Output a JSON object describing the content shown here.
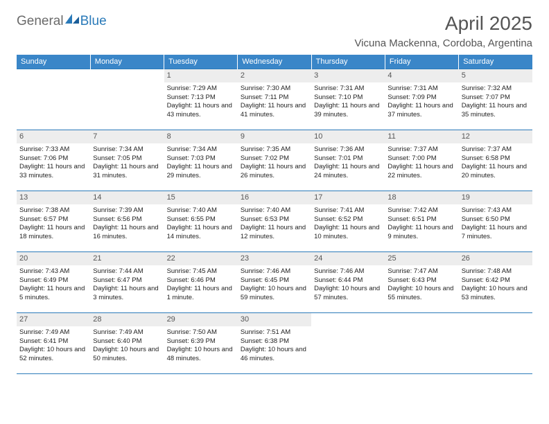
{
  "logo": {
    "textGeneral": "General",
    "textBlue": "Blue"
  },
  "header": {
    "monthTitle": "April 2025",
    "location": "Vicuna Mackenna, Cordoba, Argentina"
  },
  "colors": {
    "headerBg": "#3a86c8",
    "headerRule": "#2a7ab9",
    "dayBg": "#ededed",
    "text": "#222222",
    "titleText": "#555555"
  },
  "dayHeaders": [
    "Sunday",
    "Monday",
    "Tuesday",
    "Wednesday",
    "Thursday",
    "Friday",
    "Saturday"
  ],
  "weeks": [
    [
      {
        "blank": true
      },
      {
        "blank": true
      },
      {
        "n": "1",
        "sr": "7:29 AM",
        "ss": "7:13 PM",
        "dl": "11 hours and 43 minutes."
      },
      {
        "n": "2",
        "sr": "7:30 AM",
        "ss": "7:11 PM",
        "dl": "11 hours and 41 minutes."
      },
      {
        "n": "3",
        "sr": "7:31 AM",
        "ss": "7:10 PM",
        "dl": "11 hours and 39 minutes."
      },
      {
        "n": "4",
        "sr": "7:31 AM",
        "ss": "7:09 PM",
        "dl": "11 hours and 37 minutes."
      },
      {
        "n": "5",
        "sr": "7:32 AM",
        "ss": "7:07 PM",
        "dl": "11 hours and 35 minutes."
      }
    ],
    [
      {
        "n": "6",
        "sr": "7:33 AM",
        "ss": "7:06 PM",
        "dl": "11 hours and 33 minutes."
      },
      {
        "n": "7",
        "sr": "7:34 AM",
        "ss": "7:05 PM",
        "dl": "11 hours and 31 minutes."
      },
      {
        "n": "8",
        "sr": "7:34 AM",
        "ss": "7:03 PM",
        "dl": "11 hours and 29 minutes."
      },
      {
        "n": "9",
        "sr": "7:35 AM",
        "ss": "7:02 PM",
        "dl": "11 hours and 26 minutes."
      },
      {
        "n": "10",
        "sr": "7:36 AM",
        "ss": "7:01 PM",
        "dl": "11 hours and 24 minutes."
      },
      {
        "n": "11",
        "sr": "7:37 AM",
        "ss": "7:00 PM",
        "dl": "11 hours and 22 minutes."
      },
      {
        "n": "12",
        "sr": "7:37 AM",
        "ss": "6:58 PM",
        "dl": "11 hours and 20 minutes."
      }
    ],
    [
      {
        "n": "13",
        "sr": "7:38 AM",
        "ss": "6:57 PM",
        "dl": "11 hours and 18 minutes."
      },
      {
        "n": "14",
        "sr": "7:39 AM",
        "ss": "6:56 PM",
        "dl": "11 hours and 16 minutes."
      },
      {
        "n": "15",
        "sr": "7:40 AM",
        "ss": "6:55 PM",
        "dl": "11 hours and 14 minutes."
      },
      {
        "n": "16",
        "sr": "7:40 AM",
        "ss": "6:53 PM",
        "dl": "11 hours and 12 minutes."
      },
      {
        "n": "17",
        "sr": "7:41 AM",
        "ss": "6:52 PM",
        "dl": "11 hours and 10 minutes."
      },
      {
        "n": "18",
        "sr": "7:42 AM",
        "ss": "6:51 PM",
        "dl": "11 hours and 9 minutes."
      },
      {
        "n": "19",
        "sr": "7:43 AM",
        "ss": "6:50 PM",
        "dl": "11 hours and 7 minutes."
      }
    ],
    [
      {
        "n": "20",
        "sr": "7:43 AM",
        "ss": "6:49 PM",
        "dl": "11 hours and 5 minutes."
      },
      {
        "n": "21",
        "sr": "7:44 AM",
        "ss": "6:47 PM",
        "dl": "11 hours and 3 minutes."
      },
      {
        "n": "22",
        "sr": "7:45 AM",
        "ss": "6:46 PM",
        "dl": "11 hours and 1 minute."
      },
      {
        "n": "23",
        "sr": "7:46 AM",
        "ss": "6:45 PM",
        "dl": "10 hours and 59 minutes."
      },
      {
        "n": "24",
        "sr": "7:46 AM",
        "ss": "6:44 PM",
        "dl": "10 hours and 57 minutes."
      },
      {
        "n": "25",
        "sr": "7:47 AM",
        "ss": "6:43 PM",
        "dl": "10 hours and 55 minutes."
      },
      {
        "n": "26",
        "sr": "7:48 AM",
        "ss": "6:42 PM",
        "dl": "10 hours and 53 minutes."
      }
    ],
    [
      {
        "n": "27",
        "sr": "7:49 AM",
        "ss": "6:41 PM",
        "dl": "10 hours and 52 minutes."
      },
      {
        "n": "28",
        "sr": "7:49 AM",
        "ss": "6:40 PM",
        "dl": "10 hours and 50 minutes."
      },
      {
        "n": "29",
        "sr": "7:50 AM",
        "ss": "6:39 PM",
        "dl": "10 hours and 48 minutes."
      },
      {
        "n": "30",
        "sr": "7:51 AM",
        "ss": "6:38 PM",
        "dl": "10 hours and 46 minutes."
      },
      {
        "blank": true
      },
      {
        "blank": true
      },
      {
        "blank": true
      }
    ]
  ],
  "labels": {
    "sunrise": "Sunrise: ",
    "sunset": "Sunset: ",
    "daylight": "Daylight: "
  }
}
